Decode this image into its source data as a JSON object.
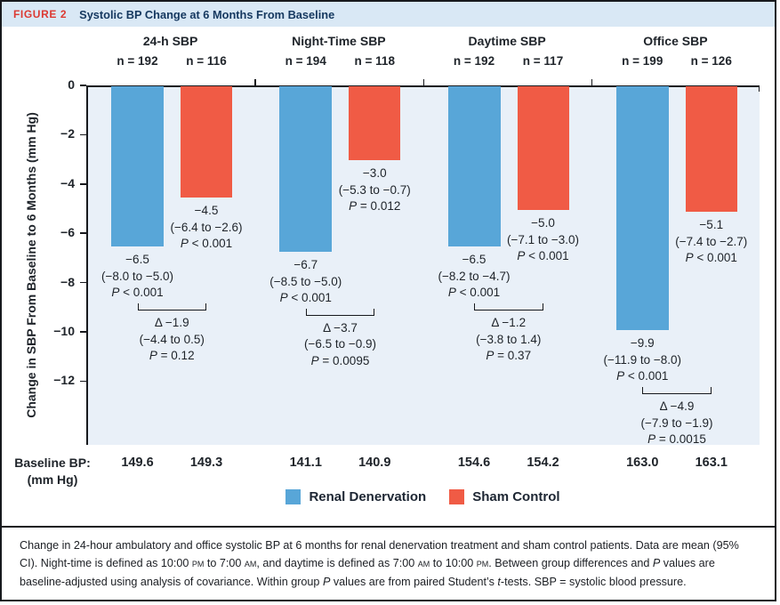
{
  "header": {
    "tag": "FIGURE 2",
    "title": "Systolic BP Change at 6 Months From Baseline"
  },
  "baseline_row": {
    "label": "Baseline BP:",
    "unit": "(mm Hg)"
  },
  "legend": [
    {
      "label": "Renal Denervation",
      "color": "#58A6D8"
    },
    {
      "label": "Sham Control",
      "color": "#F05B45"
    }
  ],
  "colors": {
    "renal_denervation": "#58A6D8",
    "sham_control": "#F05B45",
    "plot_background": "#E9F0F8",
    "header_background": "#D9E8F5",
    "figure_tag_red": "#DC3932",
    "title_navy": "#15385F"
  },
  "chart_data": {
    "type": "bar",
    "title": "Systolic BP Change at 6 Months From Baseline",
    "ylabel": "Change in SBP From Baseline to 6 Months (mm Hg)",
    "ylim": [
      0,
      -14.6
    ],
    "yticks": [
      0,
      -2,
      -4,
      -6,
      -8,
      -10,
      -12
    ],
    "ytick_labels": [
      "0",
      "−2",
      "−4",
      "−6",
      "−8",
      "−10",
      "−12"
    ],
    "grid": false,
    "legend_position": "bottom",
    "series": [
      {
        "name": "Renal Denervation",
        "color": "#58A6D8"
      },
      {
        "name": "Sham Control",
        "color": "#F05B45"
      }
    ],
    "groups": [
      {
        "label": "24-h SBP",
        "bars": [
          {
            "series": "Renal Denervation",
            "n": "n = 192",
            "value": -6.5,
            "value_label": "−6.5",
            "ci": "(−8.0 to −5.0)",
            "p": "P < 0.001",
            "baseline": "149.6"
          },
          {
            "series": "Sham Control",
            "n": "n = 116",
            "value": -4.5,
            "value_label": "−4.5",
            "ci": "(−6.4 to −2.6)",
            "p": "P < 0.001",
            "baseline": "149.3"
          }
        ],
        "delta": {
          "value": -1.9,
          "label": "Δ −1.9",
          "ci": "(−4.4 to 0.5)",
          "p": "P = 0.12"
        }
      },
      {
        "label": "Night-Time SBP",
        "bars": [
          {
            "series": "Renal Denervation",
            "n": "n = 194",
            "value": -6.7,
            "value_label": "−6.7",
            "ci": "(−8.5 to −5.0)",
            "p": "P < 0.001",
            "baseline": "141.1"
          },
          {
            "series": "Sham Control",
            "n": "n = 118",
            "value": -3.0,
            "value_label": "−3.0",
            "ci": "(−5.3 to −0.7)",
            "p": "P = 0.012",
            "baseline": "140.9"
          }
        ],
        "delta": {
          "value": -3.7,
          "label": "Δ −3.7",
          "ci": "(−6.5 to −0.9)",
          "p": "P = 0.0095"
        }
      },
      {
        "label": "Daytime SBP",
        "bars": [
          {
            "series": "Renal Denervation",
            "n": "n = 192",
            "value": -6.5,
            "value_label": "−6.5",
            "ci": "(−8.2 to −4.7)",
            "p": "P < 0.001",
            "baseline": "154.6"
          },
          {
            "series": "Sham Control",
            "n": "n = 117",
            "value": -5.0,
            "value_label": "−5.0",
            "ci": "(−7.1 to −3.0)",
            "p": "P < 0.001",
            "baseline": "154.2"
          }
        ],
        "delta": {
          "value": -1.2,
          "label": "Δ −1.2",
          "ci": "(−3.8 to 1.4)",
          "p": "P = 0.37"
        }
      },
      {
        "label": "Office SBP",
        "bars": [
          {
            "series": "Renal Denervation",
            "n": "n = 199",
            "value": -9.9,
            "value_label": "−9.9",
            "ci": "(−11.9 to −8.0)",
            "p": "P < 0.001",
            "baseline": "163.0"
          },
          {
            "series": "Sham Control",
            "n": "n = 126",
            "value": -5.1,
            "value_label": "−5.1",
            "ci": "(−7.4 to −2.7)",
            "p": "P < 0.001",
            "baseline": "163.1"
          }
        ],
        "delta": {
          "value": -4.9,
          "label": "Δ −4.9",
          "ci": "(−7.9 to −1.9)",
          "p": "P = 0.0015"
        }
      }
    ]
  },
  "caption_segments": [
    {
      "t": "Change in 24-hour ambulatory and office systolic BP at 6 months for renal denervation treatment and sham control patients. Data are mean (95% CI). Night-time is defined as 10:00 "
    },
    {
      "t": "pm",
      "sc": true
    },
    {
      "t": " to 7:00 "
    },
    {
      "t": "am",
      "sc": true
    },
    {
      "t": ", and daytime is defined as 7:00 "
    },
    {
      "t": "am",
      "sc": true
    },
    {
      "t": " to 10:00 "
    },
    {
      "t": "pm",
      "sc": true
    },
    {
      "t": ". Between group differences and "
    },
    {
      "t": "P",
      "i": true
    },
    {
      "t": " values are baseline-adjusted using analysis of covariance. Within group "
    },
    {
      "t": "P",
      "i": true
    },
    {
      "t": " values are from paired Student’s "
    },
    {
      "t": "t",
      "i": true
    },
    {
      "t": "-tests. SBP = systolic blood pressure."
    }
  ]
}
